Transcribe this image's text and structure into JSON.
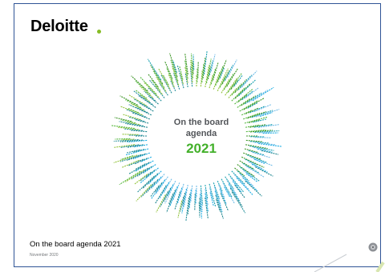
{
  "brand": {
    "logo_text": "Deloitte",
    "accent_color": "#86bc25"
  },
  "cover": {
    "center_line1": "On the board",
    "center_line2": "agenda",
    "center_year": "2021",
    "year_color": "#43b02a",
    "wheel_colors": [
      "#86bc25",
      "#43b02a",
      "#26890d",
      "#0097a9",
      "#62b5e5",
      "#00a3e0",
      "#007680",
      "#0d8390"
    ]
  },
  "footer": {
    "title": "On the board agenda 2021",
    "date": "November 2020"
  },
  "icons": {
    "corner": "disc-icon"
  }
}
